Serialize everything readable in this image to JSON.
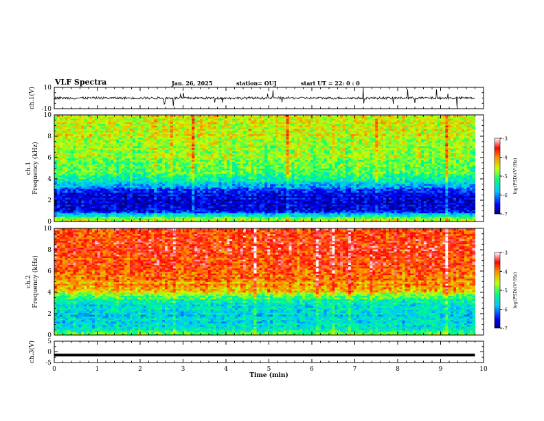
{
  "header": {
    "title": "VLF Spectra",
    "date": "Jan. 26, 2025",
    "station": "station= OUJ",
    "start": "start  UT =   22: 0  : 0"
  },
  "chart_data": [
    {
      "type": "line",
      "panel": "ch1-waveform",
      "ylabel": "ch.1(V)",
      "ylim": [
        -10,
        10
      ],
      "yticks": [
        "10",
        "-10"
      ],
      "baseline": 0,
      "color": "#000000"
    },
    {
      "type": "heatmap",
      "panel": "ch1-spectrogram",
      "ylabel": "ch.1\nFrequency (kHz)",
      "ylim": [
        0,
        10
      ],
      "yticks": [
        "0",
        "2",
        "4",
        "6",
        "8",
        "10"
      ],
      "colorbar": {
        "label": "log(PSD)(V²/Hz)",
        "range": [
          -7,
          -3
        ],
        "ticks": [
          "-3",
          "-4",
          "-5",
          "-6",
          "-7"
        ]
      },
      "profile_kHz_to_level": [
        [
          0,
          -4.6
        ],
        [
          0.5,
          -5.2
        ],
        [
          1,
          -6.6
        ],
        [
          2,
          -6.8
        ],
        [
          3,
          -6.3
        ],
        [
          3.5,
          -5.8
        ],
        [
          4.5,
          -5.1
        ],
        [
          6,
          -4.8
        ],
        [
          8,
          -4.6
        ],
        [
          10,
          -4.5
        ]
      ]
    },
    {
      "type": "heatmap",
      "panel": "ch2-spectrogram",
      "ylabel": "ch.2\nFrequency (kHz)",
      "ylim": [
        0,
        10
      ],
      "yticks": [
        "0",
        "2",
        "4",
        "6",
        "8",
        "10"
      ],
      "colorbar": {
        "label": "log(PSD)(V²/Hz)",
        "range": [
          -7,
          -3
        ],
        "ticks": [
          "-3",
          "-4",
          "-5",
          "-6",
          "-7"
        ]
      },
      "profile_kHz_to_level": [
        [
          0,
          -4.8
        ],
        [
          0.5,
          -5.3
        ],
        [
          1,
          -5.6
        ],
        [
          2,
          -5.7
        ],
        [
          3,
          -5.5
        ],
        [
          3.7,
          -5.0
        ],
        [
          4.2,
          -4.2
        ],
        [
          6,
          -3.8
        ],
        [
          8,
          -3.7
        ],
        [
          10,
          -3.6
        ]
      ]
    },
    {
      "type": "line",
      "panel": "ch3-waveform",
      "ylabel": "ch.3(V)",
      "ylim": [
        -5,
        5
      ],
      "yticks": [
        "5",
        "0",
        "-5"
      ],
      "values_constant": -1.5,
      "color": "#000000"
    }
  ],
  "xaxis": {
    "label": "Time (min)",
    "range": [
      0,
      10
    ],
    "ticks": [
      "0",
      "1",
      "2",
      "3",
      "4",
      "5",
      "6",
      "7",
      "8",
      "9",
      "10"
    ],
    "data_end": 9.8
  }
}
